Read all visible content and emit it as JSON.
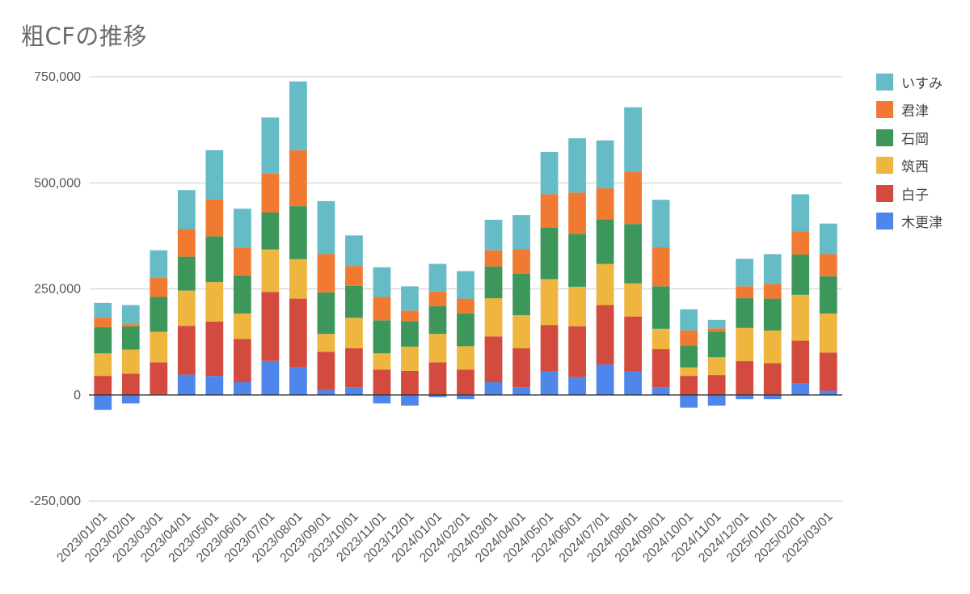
{
  "chart_data": {
    "type": "bar",
    "stacked": true,
    "title": "粗CFの推移",
    "xlabel": "",
    "ylabel": "",
    "ylim": [
      -250000,
      750000
    ],
    "yticks": [
      750000,
      500000,
      250000,
      0,
      -250000
    ],
    "ytick_labels": [
      "750,000",
      "500,000",
      "250,000",
      "0",
      "-250,000"
    ],
    "grid": true,
    "legend_position": "right",
    "categories": [
      "2023/01/01",
      "2023/02/01",
      "2023/03/01",
      "2023/04/01",
      "2023/05/01",
      "2023/06/01",
      "2023/07/01",
      "2023/08/01",
      "2023/09/01",
      "2023/10/01",
      "2023/11/01",
      "2023/12/01",
      "2024/01/01",
      "2024/02/01",
      "2024/03/01",
      "2024/04/01",
      "2024/05/01",
      "2024/06/01",
      "2024/07/01",
      "2024/08/01",
      "2024/09/01",
      "2024/10/01",
      "2024/11/01",
      "2024/12/01",
      "2025/01/01",
      "2025/02/01",
      "2025/03/01"
    ],
    "series": [
      {
        "name": "木更津",
        "color": "#4f86ec",
        "values": [
          -35000,
          -20000,
          2000,
          48000,
          45000,
          30000,
          80000,
          65000,
          12000,
          18000,
          -20000,
          -25000,
          -5000,
          -10000,
          30000,
          18000,
          55000,
          42000,
          72000,
          55000,
          18000,
          -30000,
          -25000,
          -10000,
          -10000,
          28000,
          10000
        ]
      },
      {
        "name": "白子",
        "color": "#d34b3f",
        "values": [
          45000,
          50000,
          75000,
          115000,
          128000,
          102000,
          163000,
          162000,
          90000,
          92000,
          60000,
          57000,
          77000,
          60000,
          108000,
          92000,
          110000,
          120000,
          140000,
          130000,
          90000,
          45000,
          47000,
          80000,
          75000,
          100000,
          90000
        ]
      },
      {
        "name": "筑西",
        "color": "#eeb53f",
        "values": [
          53000,
          57000,
          72000,
          83000,
          93000,
          60000,
          100000,
          93000,
          42000,
          72000,
          38000,
          57000,
          67000,
          55000,
          90000,
          78000,
          108000,
          93000,
          97000,
          78000,
          48000,
          20000,
          42000,
          78000,
          77000,
          108000,
          92000
        ]
      },
      {
        "name": "石岡",
        "color": "#3e975a",
        "values": [
          62000,
          55000,
          82000,
          80000,
          108000,
          90000,
          87000,
          125000,
          98000,
          75000,
          78000,
          60000,
          65000,
          77000,
          75000,
          98000,
          122000,
          125000,
          105000,
          140000,
          100000,
          52000,
          60000,
          70000,
          75000,
          95000,
          88000
        ]
      },
      {
        "name": "君津",
        "color": "#f07a32",
        "values": [
          22000,
          5000,
          45000,
          65000,
          88000,
          65000,
          92000,
          132000,
          90000,
          47000,
          55000,
          25000,
          35000,
          35000,
          38000,
          58000,
          78000,
          97000,
          73000,
          123000,
          92000,
          35000,
          8000,
          28000,
          35000,
          55000,
          52000
        ]
      },
      {
        "name": "いすみ",
        "color": "#65bbc6",
        "values": [
          35000,
          45000,
          65000,
          92000,
          115000,
          92000,
          132000,
          162000,
          125000,
          72000,
          70000,
          57000,
          65000,
          65000,
          72000,
          80000,
          100000,
          128000,
          113000,
          152000,
          112000,
          50000,
          20000,
          65000,
          70000,
          87000,
          72000
        ]
      }
    ]
  }
}
